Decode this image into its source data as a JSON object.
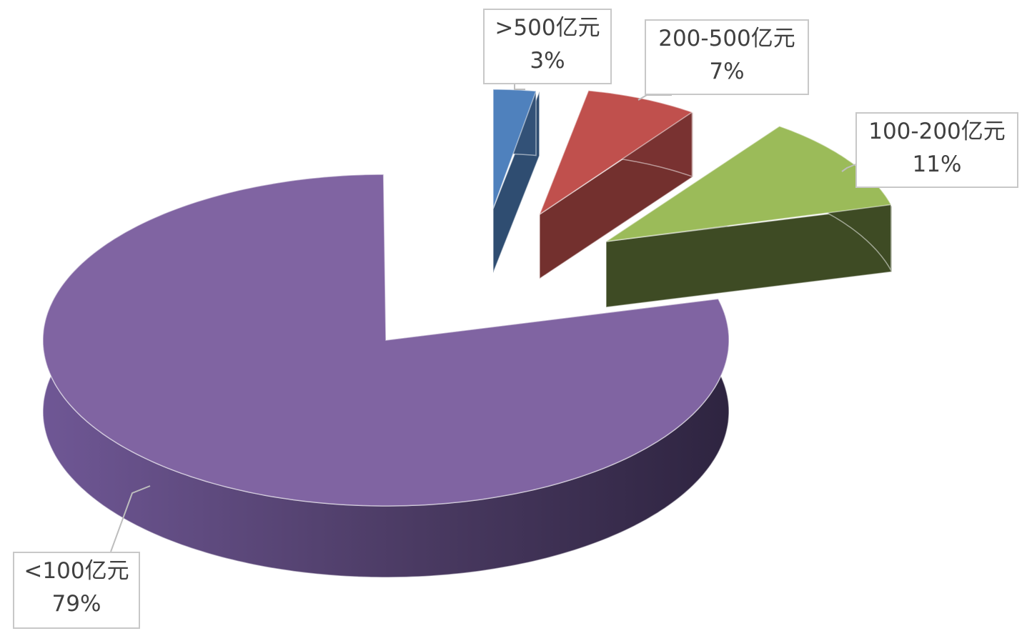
{
  "chart_data": {
    "type": "pie",
    "style": "3d-exploded",
    "categories": [
      ">500亿元",
      "200-500亿元",
      "100-200亿元",
      "<100亿元"
    ],
    "values": [
      3,
      7,
      11,
      79
    ],
    "value_labels": [
      "3%",
      "7%",
      "11%",
      "79%"
    ],
    "colors": [
      "#4f81bd",
      "#c0504d",
      "#9bbb59",
      "#8064a2"
    ],
    "legend": "none"
  }
}
